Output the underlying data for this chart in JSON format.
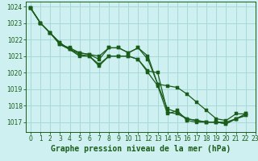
{
  "title": "Graphe pression niveau de la mer (hPa)",
  "bg_color": "#cef0f0",
  "grid_color": "#a8d8d8",
  "line_color": "#1a5c1a",
  "xlim": [
    -0.5,
    23
  ],
  "ylim": [
    1016.4,
    1024.3
  ],
  "yticks": [
    1017,
    1018,
    1019,
    1020,
    1021,
    1022,
    1023,
    1024
  ],
  "xticks": [
    0,
    1,
    2,
    3,
    4,
    5,
    6,
    7,
    8,
    9,
    10,
    11,
    12,
    13,
    14,
    15,
    16,
    17,
    18,
    19,
    20,
    21,
    22,
    23
  ],
  "series": [
    {
      "x": [
        0,
        1,
        2,
        3,
        4,
        5,
        6,
        7,
        8,
        9,
        10,
        11,
        12,
        13,
        14,
        15,
        16,
        17,
        18,
        19,
        20,
        21,
        22
      ],
      "y": [
        1023.9,
        1023.0,
        1022.4,
        1021.7,
        1021.5,
        1021.2,
        1021.1,
        1021.0,
        1021.5,
        1021.5,
        1021.2,
        1021.5,
        1020.8,
        1019.3,
        1019.2,
        1019.1,
        1018.7,
        1018.2,
        1017.7,
        1017.2,
        1017.1,
        1017.5,
        1017.5
      ]
    },
    {
      "x": [
        0,
        1,
        2,
        3,
        4,
        5,
        6,
        7,
        8,
        9,
        10,
        11,
        12,
        13,
        14,
        15,
        16,
        17,
        18,
        19,
        20,
        21,
        22
      ],
      "y": [
        1023.9,
        1023.0,
        1022.4,
        1021.8,
        1021.4,
        1021.1,
        1021.0,
        1020.5,
        1021.0,
        1021.0,
        1021.0,
        1020.8,
        1020.1,
        1020.0,
        1017.6,
        1017.5,
        1017.2,
        1017.1,
        1017.0,
        1017.0,
        1016.9,
        1017.2,
        1017.4
      ]
    },
    {
      "x": [
        0,
        1,
        2,
        3,
        4,
        5,
        6,
        7,
        8,
        9,
        10,
        11,
        12,
        13,
        14,
        15,
        16,
        17,
        18,
        19,
        20,
        21,
        22
      ],
      "y": [
        1023.9,
        1023.0,
        1022.4,
        1021.7,
        1021.4,
        1021.0,
        1021.0,
        1020.4,
        1021.0,
        1021.0,
        1021.0,
        1020.8,
        1020.0,
        1019.2,
        1017.5,
        1017.7,
        1017.1,
        1017.0,
        1017.0,
        1017.0,
        1016.9,
        1017.2,
        1017.4
      ]
    },
    {
      "x": [
        0,
        1,
        2,
        3,
        4,
        5,
        6,
        7,
        8,
        9,
        10,
        11,
        12,
        13,
        14,
        15,
        16,
        17,
        18,
        19,
        20,
        21,
        22
      ],
      "y": [
        1023.9,
        1023.0,
        1022.4,
        1021.8,
        1021.4,
        1021.2,
        1021.1,
        1020.8,
        1021.5,
        1021.5,
        1021.2,
        1021.5,
        1021.0,
        1019.3,
        1017.8,
        1017.6,
        1017.2,
        1017.1,
        1017.0,
        1017.0,
        1017.0,
        1017.2,
        1017.5
      ]
    }
  ],
  "title_fontsize": 7,
  "tick_fontsize": 5.5
}
